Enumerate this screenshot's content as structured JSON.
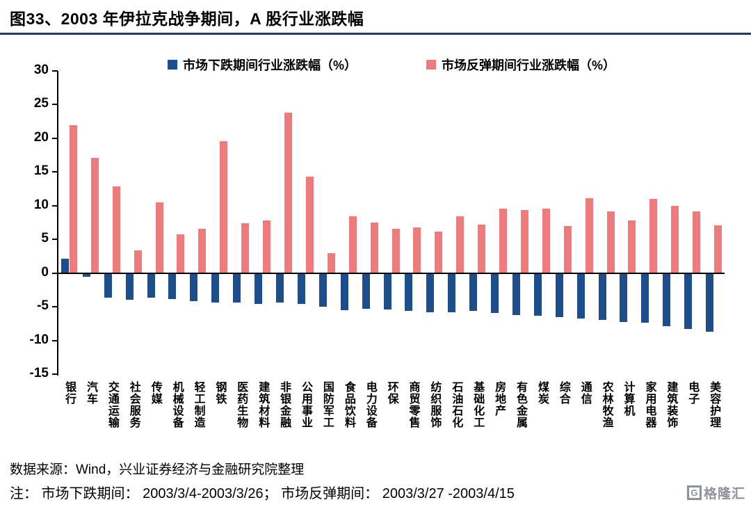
{
  "title": "图33、2003 年伊拉克战争期间，A 股行业涨跌幅",
  "footer": {
    "source": "数据来源：Wind，兴业证券经济与金融研究院整理",
    "note": "注： 市场下跌期间： 2003/3/4-2003/3/26； 市场反弹期间： 2003/3/27 -2003/4/15",
    "logo_text": "格隆汇",
    "logo_letter": "G"
  },
  "colors": {
    "decline": "#1c4e8e",
    "rebound": "#ef7c7c",
    "title_rule": "#1f3864"
  },
  "chart_data": {
    "type": "bar",
    "title": "图33、2003 年伊拉克战争期间，A 股行业涨跌幅",
    "legend_position": "top",
    "grid": false,
    "ylim": [
      -15,
      30
    ],
    "yticks": [
      30,
      25,
      20,
      15,
      10,
      5,
      0,
      -5,
      -10,
      -15
    ],
    "xlabel": "",
    "ylabel": "",
    "categories": [
      "银行",
      "汽车",
      "交通运输",
      "社会服务",
      "传媒",
      "机械设备",
      "轻工制造",
      "钢铁",
      "医药生物",
      "建筑材料",
      "非银金融",
      "公用事业",
      "国防军工",
      "食品饮料",
      "电力设备",
      "环保",
      "商贸零售",
      "纺织服饰",
      "石油石化",
      "基础化工",
      "房地产",
      "有色金属",
      "煤炭",
      "综合",
      "通信",
      "农林牧渔",
      "计算机",
      "家用电器",
      "建筑装饰",
      "电子",
      "美容护理"
    ],
    "series": [
      {
        "key": "decline",
        "name": "市场下跌期间行业涨跌幅（%）",
        "color": "#1c4e8e",
        "values": [
          2.1,
          -0.5,
          -3.6,
          -4.0,
          -3.6,
          -3.9,
          -4.2,
          -4.4,
          -4.4,
          -4.6,
          -4.4,
          -4.6,
          -5.0,
          -5.5,
          -5.3,
          -5.4,
          -5.6,
          -5.8,
          -5.8,
          -5.6,
          -5.9,
          -6.2,
          -6.3,
          -6.5,
          -6.7,
          -6.9,
          -7.3,
          -7.4,
          -7.9,
          -8.3,
          -8.7
        ]
      },
      {
        "key": "rebound",
        "name": "市场反弹期间行业涨跌幅（%）",
        "color": "#ef7c7c",
        "values": [
          22.0,
          17.1,
          12.9,
          3.4,
          10.5,
          5.7,
          6.6,
          19.6,
          7.4,
          7.8,
          23.8,
          14.3,
          3.0,
          8.4,
          7.5,
          6.6,
          6.8,
          6.2,
          8.4,
          7.2,
          9.6,
          9.4,
          9.6,
          7.0,
          11.1,
          9.1,
          7.8,
          11.0,
          10.0,
          9.2,
          7.1
        ]
      }
    ]
  }
}
